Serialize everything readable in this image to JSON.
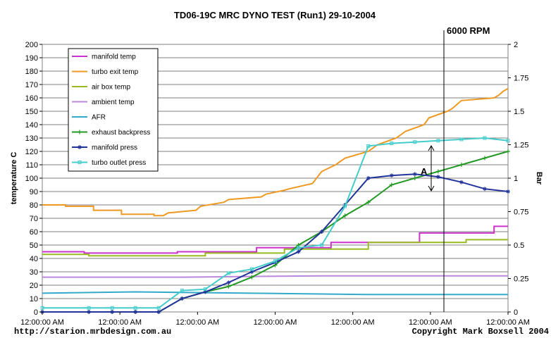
{
  "chart_data": {
    "type": "line",
    "title": "TD06-19C MRC DYNO TEST (Run1)  29-10-2004",
    "ylabel": "temperature C",
    "y2label": "Bar",
    "ylim": [
      0,
      200
    ],
    "y2lim": [
      0,
      2
    ],
    "y_ticks": [
      0,
      10,
      20,
      30,
      40,
      50,
      60,
      70,
      80,
      90,
      100,
      110,
      120,
      130,
      140,
      150,
      160,
      170,
      180,
      190,
      200
    ],
    "y2_ticks": [
      "0",
      "0.25",
      "0.5",
      "0.75",
      "1",
      "1.25",
      "1.5",
      "1.75",
      "2"
    ],
    "x_tick_labels": [
      "12:00:00 AM",
      "12:00:00 AM",
      "12:00:00 AM",
      "12:00:00 AM",
      "12:00:00 AM",
      "12:00:00 AM",
      "12:00:00 AM"
    ],
    "grid": true,
    "legend_position": "top-left",
    "vline_label": "6000 RPM",
    "annotation": "A",
    "footer_left": "http://starion.mrbdesign.com.au",
    "footer_right": "Copyright Mark Boxsell 2004",
    "series": [
      {
        "name": "manifold temp",
        "axis": "left",
        "color": "#cc33cc",
        "marker": "none",
        "x": [
          0,
          0.09,
          0.09,
          0.29,
          0.29,
          0.46,
          0.46,
          0.62,
          0.62,
          0.81,
          0.81,
          0.97,
          0.97,
          1.0
        ],
        "y": [
          45,
          45,
          44,
          44,
          45,
          45,
          48,
          48,
          52,
          52,
          59,
          59,
          64,
          64
        ]
      },
      {
        "name": "turbo exit temp",
        "axis": "left",
        "color": "#ee9922",
        "marker": "none",
        "x": [
          0,
          0.05,
          0.05,
          0.11,
          0.11,
          0.17,
          0.17,
          0.24,
          0.24,
          0.26,
          0.27,
          0.33,
          0.34,
          0.39,
          0.4,
          0.47,
          0.48,
          0.52,
          0.53,
          0.58,
          0.6,
          0.63,
          0.65,
          0.7,
          0.72,
          0.76,
          0.78,
          0.82,
          0.83,
          0.87,
          0.88,
          0.89,
          0.9,
          0.97,
          0.98,
          0.99,
          1.0
        ],
        "y": [
          80,
          80,
          79,
          79,
          76,
          76,
          73,
          73,
          72,
          72,
          74,
          76,
          79,
          82,
          84,
          86,
          88,
          91,
          92,
          96,
          105,
          110,
          115,
          120,
          125,
          130,
          135,
          140,
          145,
          150,
          152,
          155,
          158,
          160,
          162,
          165,
          167
        ]
      },
      {
        "name": "air box temp",
        "axis": "left",
        "color": "#99bb22",
        "marker": "none",
        "x": [
          0,
          0.1,
          0.1,
          0.35,
          0.35,
          0.52,
          0.52,
          0.7,
          0.7,
          0.91,
          0.91,
          1.0
        ],
        "y": [
          43,
          43,
          42,
          42,
          44,
          44,
          47,
          47,
          52,
          52,
          54,
          54
        ]
      },
      {
        "name": "ambient temp",
        "axis": "left",
        "color": "#bb88dd",
        "marker": "none",
        "x": [
          0,
          0.3,
          0.6,
          1.0
        ],
        "y": [
          26,
          26,
          27,
          27
        ]
      },
      {
        "name": "AFR",
        "axis": "left",
        "color": "#33aacc",
        "marker": "none",
        "x": [
          0,
          0.2,
          0.45,
          0.7,
          1.0
        ],
        "y": [
          14,
          15,
          14,
          13,
          13
        ]
      },
      {
        "name": "exhaust backpress",
        "axis": "right",
        "color": "#229922",
        "marker": "plus",
        "x": [
          0,
          0.1,
          0.15,
          0.2,
          0.25,
          0.3,
          0.35,
          0.4,
          0.45,
          0.5,
          0.55,
          0.6,
          0.65,
          0.7,
          0.75,
          0.8,
          0.85,
          0.9,
          0.95,
          1.0
        ],
        "y": [
          0,
          0,
          0,
          0,
          0,
          0.1,
          0.15,
          0.19,
          0.26,
          0.35,
          0.5,
          0.6,
          0.72,
          0.82,
          0.95,
          1.0,
          1.05,
          1.1,
          1.15,
          1.2
        ]
      },
      {
        "name": "manifold press",
        "axis": "right",
        "color": "#223399",
        "marker": "star",
        "x": [
          0,
          0.1,
          0.15,
          0.2,
          0.25,
          0.3,
          0.35,
          0.4,
          0.45,
          0.5,
          0.55,
          0.6,
          0.65,
          0.7,
          0.75,
          0.8,
          0.85,
          0.9,
          0.95,
          1.0
        ],
        "y": [
          0,
          0,
          0,
          0,
          0,
          0.1,
          0.15,
          0.22,
          0.3,
          0.37,
          0.45,
          0.6,
          0.8,
          1.0,
          1.02,
          1.03,
          1.01,
          0.97,
          0.92,
          0.9
        ]
      },
      {
        "name": "turbo outlet press",
        "axis": "right",
        "color": "#44cccc",
        "marker": "square",
        "x": [
          0,
          0.1,
          0.15,
          0.2,
          0.25,
          0.3,
          0.35,
          0.4,
          0.45,
          0.5,
          0.55,
          0.6,
          0.65,
          0.7,
          0.75,
          0.8,
          0.85,
          0.9,
          0.95,
          1.0
        ],
        "y": [
          0.03,
          0.03,
          0.03,
          0.03,
          0.03,
          0.16,
          0.17,
          0.29,
          0.32,
          0.38,
          0.48,
          0.5,
          0.79,
          1.24,
          1.26,
          1.27,
          1.28,
          1.29,
          1.3,
          1.28
        ]
      }
    ]
  }
}
